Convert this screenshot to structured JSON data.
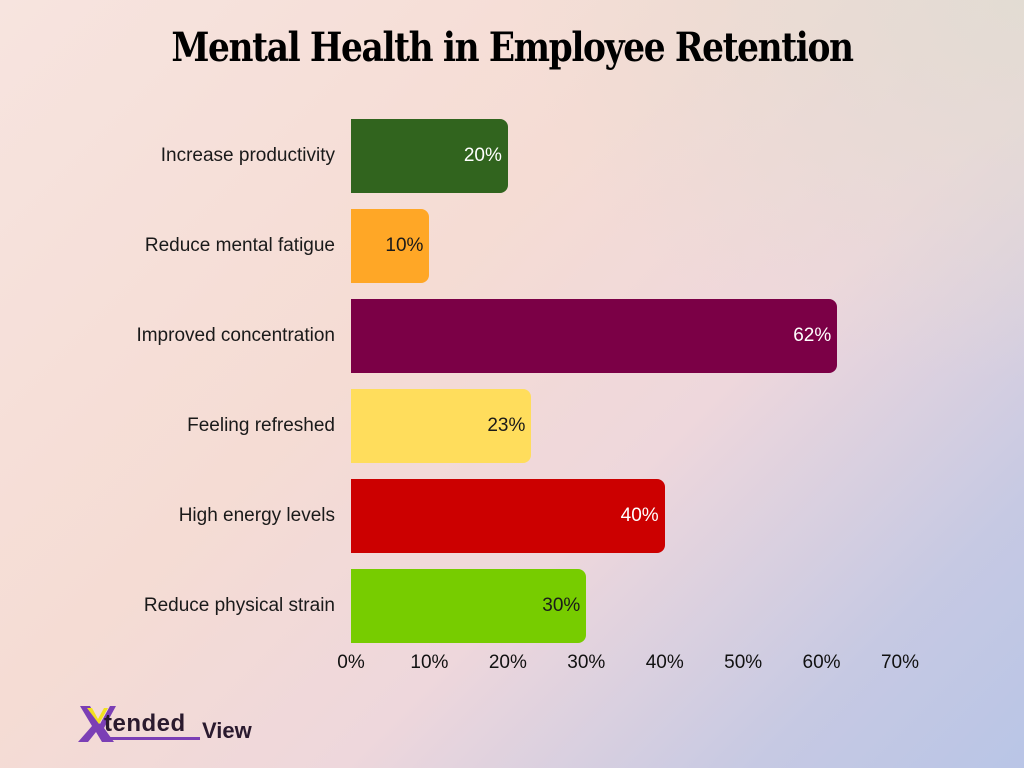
{
  "title": "Mental Health in Employee Retention",
  "logo": {
    "part1": "tended",
    "part2": "View",
    "mark": "X"
  },
  "chart_data": {
    "type": "bar",
    "orientation": "horizontal",
    "title": "Mental Health in Employee Retention",
    "xlabel": "",
    "ylabel": "",
    "xlim": [
      0,
      70
    ],
    "grid": false,
    "legend": null,
    "categories": [
      "Increase productivity",
      "Reduce mental fatigue",
      "Improved concentration",
      "Feeling refreshed",
      "High energy levels",
      "Reduce physical strain"
    ],
    "values": [
      20,
      10,
      62,
      23,
      40,
      30
    ],
    "value_labels": [
      "20%",
      "10%",
      "62%",
      "23%",
      "40%",
      "30%"
    ],
    "colors": [
      "#31641e",
      "#ffa726",
      "#7b0046",
      "#ffdd5c",
      "#cc0000",
      "#77cc00"
    ],
    "label_colors": [
      "#ffffff",
      "#1a1a1a",
      "#ffffff",
      "#1a1a1a",
      "#ffffff",
      "#1a1a1a"
    ],
    "x_ticks": [
      "0%",
      "10%",
      "20%",
      "30%",
      "40%",
      "50%",
      "60%",
      "70%"
    ]
  }
}
